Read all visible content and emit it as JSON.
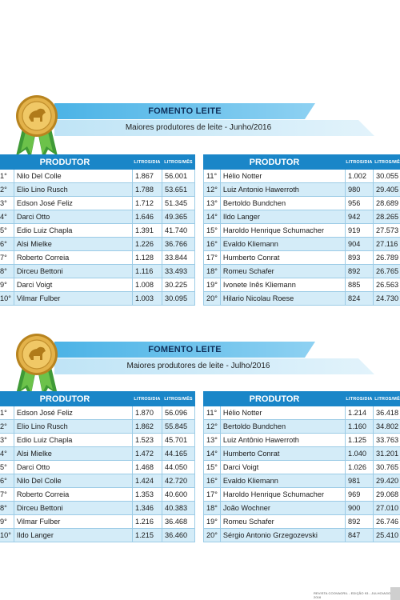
{
  "sections": [
    {
      "title": "FOMENTO LEITE",
      "subtitle": "Maiores produtores de leite - Junho/2016",
      "headers": {
        "produtor": "PRODUTOR",
        "dia": "LITROS/DIA",
        "mes": "LITROS/MÊS"
      },
      "left": [
        {
          "rank": "1°",
          "name": "Nilo Del Colle",
          "dia": "1.867",
          "mes": "56.001"
        },
        {
          "rank": "2°",
          "name": "Elio Lino Rusch",
          "dia": "1.788",
          "mes": "53.651"
        },
        {
          "rank": "3°",
          "name": "Edson José Feliz",
          "dia": "1.712",
          "mes": "51.345"
        },
        {
          "rank": "4°",
          "name": "Darci Otto",
          "dia": "1.646",
          "mes": "49.365"
        },
        {
          "rank": "5°",
          "name": "Edio Luiz Chapla",
          "dia": "1.391",
          "mes": "41.740"
        },
        {
          "rank": "6°",
          "name": "Alsi Mielke",
          "dia": "1.226",
          "mes": "36.766"
        },
        {
          "rank": "7°",
          "name": "Roberto Correia",
          "dia": "1.128",
          "mes": "33.844"
        },
        {
          "rank": "8°",
          "name": "Dirceu Bettoni",
          "dia": "1.116",
          "mes": "33.493"
        },
        {
          "rank": "9°",
          "name": "Darci Voigt",
          "dia": "1.008",
          "mes": "30.225"
        },
        {
          "rank": "10°",
          "name": "Vilmar Fulber",
          "dia": "1.003",
          "mes": "30.095"
        }
      ],
      "right": [
        {
          "rank": "11°",
          "name": "Hélio Notter",
          "dia": "1.002",
          "mes": "30.055"
        },
        {
          "rank": "12°",
          "name": "Luiz Antonio Hawerroth",
          "dia": "980",
          "mes": "29.405"
        },
        {
          "rank": "13°",
          "name": "Bertoldo Bundchen",
          "dia": "956",
          "mes": "28.689"
        },
        {
          "rank": "14°",
          "name": "Ildo Langer",
          "dia": "942",
          "mes": "28.265"
        },
        {
          "rank": "15°",
          "name": "Haroldo Henrique Schumacher",
          "dia": "919",
          "mes": "27.573"
        },
        {
          "rank": "16°",
          "name": "Evaldo Kliemann",
          "dia": "904",
          "mes": "27.116"
        },
        {
          "rank": "17°",
          "name": "Humberto Conrat",
          "dia": "893",
          "mes": "26.789"
        },
        {
          "rank": "18°",
          "name": "Romeu Schafer",
          "dia": "892",
          "mes": "26.765"
        },
        {
          "rank": "19°",
          "name": "Ivonete Inês Kliemann",
          "dia": "885",
          "mes": "26.563"
        },
        {
          "rank": "20°",
          "name": "Hilario Nicolau Roese",
          "dia": "824",
          "mes": "24.730"
        }
      ]
    },
    {
      "title": "FOMENTO LEITE",
      "subtitle": "Maiores produtores de leite - Julho/2016",
      "headers": {
        "produtor": "PRODUTOR",
        "dia": "LITROS/DIA",
        "mes": "LITROS/MÊS"
      },
      "left": [
        {
          "rank": "1°",
          "name": "Edson José Feliz",
          "dia": "1.870",
          "mes": "56.096"
        },
        {
          "rank": "2°",
          "name": "Elio Lino Rusch",
          "dia": "1.862",
          "mes": "55.845"
        },
        {
          "rank": "3°",
          "name": "Edio Luiz Chapla",
          "dia": "1.523",
          "mes": "45.701"
        },
        {
          "rank": "4°",
          "name": "Alsi Mielke",
          "dia": "1.472",
          "mes": "44.165"
        },
        {
          "rank": "5°",
          "name": "Darci Otto",
          "dia": "1.468",
          "mes": "44.050"
        },
        {
          "rank": "6°",
          "name": "Nilo Del Colle",
          "dia": "1.424",
          "mes": "42.720"
        },
        {
          "rank": "7°",
          "name": "Roberto Correia",
          "dia": "1.353",
          "mes": "40.600"
        },
        {
          "rank": "8°",
          "name": "Dirceu Bettoni",
          "dia": "1.346",
          "mes": "40.383"
        },
        {
          "rank": "9°",
          "name": "Vilmar Fulber",
          "dia": "1.216",
          "mes": "36.468"
        },
        {
          "rank": "10°",
          "name": "Ildo Langer",
          "dia": "1.215",
          "mes": "36.460"
        }
      ],
      "right": [
        {
          "rank": "11°",
          "name": "Hélio Notter",
          "dia": "1.214",
          "mes": "36.418"
        },
        {
          "rank": "12°",
          "name": "Bertoldo Bundchen",
          "dia": "1.160",
          "mes": "34.802"
        },
        {
          "rank": "13°",
          "name": "Luiz Antônio Hawerroth",
          "dia": "1.125",
          "mes": "33.763"
        },
        {
          "rank": "14°",
          "name": "Humberto Conrat",
          "dia": "1.040",
          "mes": "31.201"
        },
        {
          "rank": "15°",
          "name": "Darci Voigt",
          "dia": "1.026",
          "mes": "30.765"
        },
        {
          "rank": "16°",
          "name": "Evaldo Kliemann",
          "dia": "981",
          "mes": "29.420"
        },
        {
          "rank": "17°",
          "name": "Haroldo Henrique Schumacher",
          "dia": "969",
          "mes": "29.068"
        },
        {
          "rank": "18°",
          "name": "João Wochner",
          "dia": "900",
          "mes": "27.010"
        },
        {
          "rank": "19°",
          "name": "Romeu Schafer",
          "dia": "892",
          "mes": "26.746"
        },
        {
          "rank": "20°",
          "name": "Sérgio Antonio Grzegozevski",
          "dia": "847",
          "mes": "25.410"
        }
      ]
    }
  ],
  "footer": "REVISTA COOVAGRIL - EDIÇÃO 93 - JULHO/AGOSTO 2016",
  "colors": {
    "header": "#1a86c8",
    "row_alt": "#d4ecf8",
    "banner": "#4bb3e6",
    "medal_gold": "#d9a73a",
    "ribbon": "#4aa33a"
  },
  "icons": {
    "medal": "gold-medal-icon"
  }
}
